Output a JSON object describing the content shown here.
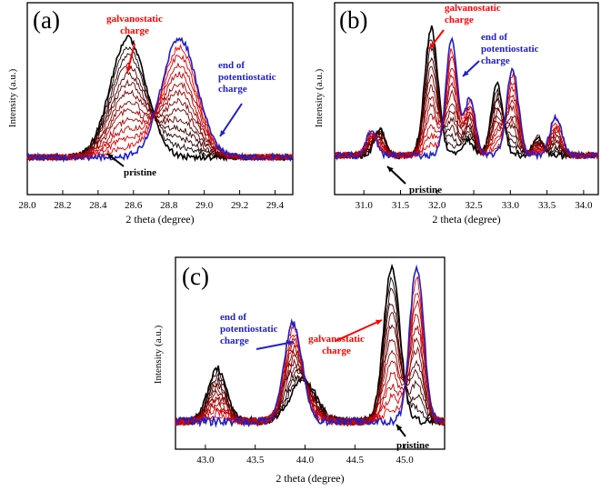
{
  "chart_data": [
    {
      "type": "line",
      "panel_label": "(a)",
      "xlabel": "2 theta (degree)",
      "ylabel": "Intensity (a.u.)",
      "xlim": [
        28.0,
        29.5
      ],
      "x_ticks": [
        "28.0",
        "28.2",
        "28.4",
        "28.6",
        "28.8",
        "29.0",
        "29.2",
        "29.4"
      ],
      "peaks_pristine": [
        {
          "center": 28.57,
          "height": 1.0,
          "width": 0.1
        }
      ],
      "peaks_charged": [
        {
          "center": 28.86,
          "height": 1.0,
          "width": 0.1
        }
      ],
      "baseline": 0.1,
      "annotations": {
        "galvanostatic": "galvanostatic\ncharge",
        "potentiostatic": "end of\npotentiostatic\ncharge",
        "pristine": "pristine"
      }
    },
    {
      "type": "line",
      "panel_label": "(b)",
      "xlabel": "2 theta (degree)",
      "ylabel": "Intensity (a.u.)",
      "xlim": [
        30.6,
        34.2
      ],
      "x_ticks": [
        "31.0",
        "31.5",
        "32.0",
        "32.5",
        "33.0",
        "33.5",
        "34.0"
      ],
      "peaks_pristine": [
        {
          "center": 31.22,
          "height": 0.22,
          "width": 0.07
        },
        {
          "center": 31.92,
          "height": 1.0,
          "width": 0.09
        },
        {
          "center": 32.42,
          "height": 0.12,
          "width": 0.08
        },
        {
          "center": 32.82,
          "height": 0.55,
          "width": 0.08
        },
        {
          "center": 33.38,
          "height": 0.15,
          "width": 0.07
        }
      ],
      "peaks_charged": [
        {
          "center": 31.1,
          "height": 0.2,
          "width": 0.07
        },
        {
          "center": 32.2,
          "height": 0.9,
          "width": 0.08
        },
        {
          "center": 32.45,
          "height": 0.45,
          "width": 0.07
        },
        {
          "center": 33.03,
          "height": 0.68,
          "width": 0.08
        },
        {
          "center": 33.62,
          "height": 0.3,
          "width": 0.08
        }
      ],
      "baseline": 0.1,
      "annotations": {
        "galvanostatic": "galvanostatic\ncharge",
        "potentiostatic": "end of\npotentiostatic\ncharge",
        "pristine": "pristine"
      }
    },
    {
      "type": "line",
      "panel_label": "(c)",
      "xlabel": "2 theta (degree)",
      "ylabel": "Intensity (a.u.)",
      "xlim": [
        42.7,
        45.4
      ],
      "x_ticks": [
        "43.0",
        "43.5",
        "44.0",
        "44.5",
        "45.0"
      ],
      "peaks_pristine": [
        {
          "center": 43.12,
          "height": 0.34,
          "width": 0.09
        },
        {
          "center": 43.98,
          "height": 0.27,
          "width": 0.13
        },
        {
          "center": 44.87,
          "height": 1.0,
          "width": 0.08
        }
      ],
      "peaks_charged": [
        {
          "center": 43.88,
          "height": 0.64,
          "width": 0.09
        },
        {
          "center": 45.12,
          "height": 1.0,
          "width": 0.07
        }
      ],
      "baseline": 0.05,
      "annotations": {
        "galvanostatic": "galvanostatic\ncharge",
        "potentiostatic": "end of\npotentiostatic\ncharge",
        "pristine": "pristine"
      }
    }
  ],
  "colors": {
    "pristine": "#000000",
    "intermediate": "#8b0000",
    "galvanostatic": "#ff0000",
    "potentiostatic": "#2020c8"
  }
}
